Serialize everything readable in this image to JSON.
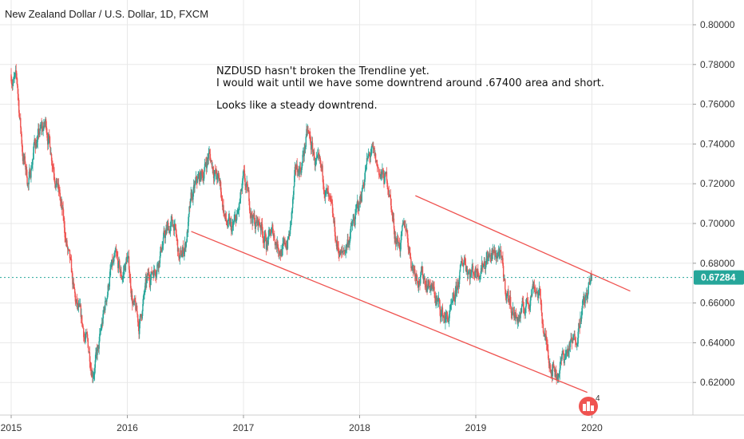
{
  "header": {
    "title": "New Zealand Dollar / U.S. Dollar, 1D, FXCM"
  },
  "annotation": {
    "lines": [
      "NZDUSD hasn't broken the Trendline yet.",
      "I would wait until we have some downtrend around .67400 area and short.",
      "",
      "Looks like a steady downtrend."
    ]
  },
  "current_price": {
    "label": "0.67284",
    "value": 0.67284,
    "color": "#26a69a"
  },
  "badge": {
    "count": "4",
    "icon": "tradingview-logo-icon"
  },
  "colors": {
    "up": "#26a69a",
    "down": "#ef5350",
    "trendline": "#ef5350",
    "grid": "#e8e8e8"
  },
  "chart_data": {
    "type": "candlestick",
    "title": "New Zealand Dollar / U.S. Dollar, 1D, FXCM",
    "xlabel": "",
    "ylabel": "",
    "xlim": [
      2015.0,
      2020.8
    ],
    "ylim": [
      0.6035,
      0.8125
    ],
    "x_ticks": [
      {
        "value": 2015,
        "label": "2015"
      },
      {
        "value": 2016,
        "label": "2016"
      },
      {
        "value": 2017,
        "label": "2017"
      },
      {
        "value": 2018,
        "label": "2018"
      },
      {
        "value": 2019,
        "label": "2019"
      },
      {
        "value": 2020,
        "label": "2020"
      }
    ],
    "y_ticks": [
      {
        "value": 0.8,
        "label": "0.80000"
      },
      {
        "value": 0.78,
        "label": "0.78000"
      },
      {
        "value": 0.76,
        "label": "0.76000"
      },
      {
        "value": 0.74,
        "label": "0.74000"
      },
      {
        "value": 0.72,
        "label": "0.72000"
      },
      {
        "value": 0.7,
        "label": "0.70000"
      },
      {
        "value": 0.68,
        "label": "0.68000"
      },
      {
        "value": 0.66,
        "label": "0.66000"
      },
      {
        "value": 0.64,
        "label": "0.64000"
      },
      {
        "value": 0.62,
        "label": "0.62000"
      }
    ],
    "grid": true,
    "price_path": [
      [
        2015.0,
        0.775
      ],
      [
        2015.05,
        0.77
      ],
      [
        2015.1,
        0.735
      ],
      [
        2015.15,
        0.72
      ],
      [
        2015.2,
        0.74
      ],
      [
        2015.25,
        0.745
      ],
      [
        2015.3,
        0.75
      ],
      [
        2015.35,
        0.735
      ],
      [
        2015.4,
        0.72
      ],
      [
        2015.45,
        0.7
      ],
      [
        2015.5,
        0.68
      ],
      [
        2015.55,
        0.66
      ],
      [
        2015.6,
        0.65
      ],
      [
        2015.65,
        0.64
      ],
      [
        2015.7,
        0.628
      ],
      [
        2015.75,
        0.635
      ],
      [
        2015.8,
        0.655
      ],
      [
        2015.85,
        0.675
      ],
      [
        2015.9,
        0.68
      ],
      [
        2015.95,
        0.672
      ],
      [
        2016.0,
        0.683
      ],
      [
        2016.05,
        0.66
      ],
      [
        2016.1,
        0.648
      ],
      [
        2016.15,
        0.665
      ],
      [
        2016.2,
        0.675
      ],
      [
        2016.25,
        0.68
      ],
      [
        2016.3,
        0.69
      ],
      [
        2016.35,
        0.697
      ],
      [
        2016.4,
        0.7
      ],
      [
        2016.45,
        0.68
      ],
      [
        2016.5,
        0.69
      ],
      [
        2016.55,
        0.71
      ],
      [
        2016.6,
        0.72
      ],
      [
        2016.65,
        0.725
      ],
      [
        2016.7,
        0.735
      ],
      [
        2016.75,
        0.727
      ],
      [
        2016.8,
        0.718
      ],
      [
        2016.85,
        0.7
      ],
      [
        2016.9,
        0.695
      ],
      [
        2016.95,
        0.703
      ],
      [
        2017.0,
        0.72
      ],
      [
        2017.05,
        0.71
      ],
      [
        2017.1,
        0.7
      ],
      [
        2017.15,
        0.7
      ],
      [
        2017.2,
        0.69
      ],
      [
        2017.25,
        0.695
      ],
      [
        2017.3,
        0.69
      ],
      [
        2017.35,
        0.686
      ],
      [
        2017.4,
        0.695
      ],
      [
        2017.45,
        0.725
      ],
      [
        2017.5,
        0.73
      ],
      [
        2017.55,
        0.745
      ],
      [
        2017.6,
        0.735
      ],
      [
        2017.65,
        0.725
      ],
      [
        2017.7,
        0.72
      ],
      [
        2017.75,
        0.705
      ],
      [
        2017.8,
        0.69
      ],
      [
        2017.85,
        0.683
      ],
      [
        2017.9,
        0.692
      ],
      [
        2017.95,
        0.7
      ],
      [
        2018.0,
        0.71
      ],
      [
        2018.05,
        0.728
      ],
      [
        2018.1,
        0.735
      ],
      [
        2018.15,
        0.728
      ],
      [
        2018.2,
        0.723
      ],
      [
        2018.25,
        0.72
      ],
      [
        2018.3,
        0.695
      ],
      [
        2018.35,
        0.69
      ],
      [
        2018.4,
        0.698
      ],
      [
        2018.45,
        0.68
      ],
      [
        2018.5,
        0.675
      ],
      [
        2018.55,
        0.673
      ],
      [
        2018.6,
        0.67
      ],
      [
        2018.65,
        0.663
      ],
      [
        2018.7,
        0.655
      ],
      [
        2018.75,
        0.652
      ],
      [
        2018.8,
        0.655
      ],
      [
        2018.85,
        0.67
      ],
      [
        2018.9,
        0.683
      ],
      [
        2018.95,
        0.676
      ],
      [
        2019.0,
        0.677
      ],
      [
        2019.05,
        0.68
      ],
      [
        2019.1,
        0.684
      ],
      [
        2019.15,
        0.683
      ],
      [
        2019.2,
        0.686
      ],
      [
        2019.25,
        0.668
      ],
      [
        2019.3,
        0.66
      ],
      [
        2019.35,
        0.652
      ],
      [
        2019.4,
        0.655
      ],
      [
        2019.45,
        0.661
      ],
      [
        2019.5,
        0.671
      ],
      [
        2019.55,
        0.663
      ],
      [
        2019.6,
        0.64
      ],
      [
        2019.65,
        0.63
      ],
      [
        2019.7,
        0.625
      ],
      [
        2019.75,
        0.632
      ],
      [
        2019.8,
        0.637
      ],
      [
        2019.85,
        0.64
      ],
      [
        2019.9,
        0.655
      ],
      [
        2019.95,
        0.662
      ],
      [
        2020.0,
        0.67284
      ]
    ],
    "trendlines": [
      {
        "from": [
          2016.55,
          0.696
        ],
        "to": [
          2019.96,
          0.615
        ]
      },
      {
        "from": [
          2018.48,
          0.714
        ],
        "to": [
          2020.33,
          0.666
        ]
      }
    ],
    "annotations": [
      "NZDUSD hasn't broken the Trendline yet.",
      "I would wait until we have some downtrend around .67400 area and short.",
      "Looks like a steady downtrend."
    ]
  }
}
